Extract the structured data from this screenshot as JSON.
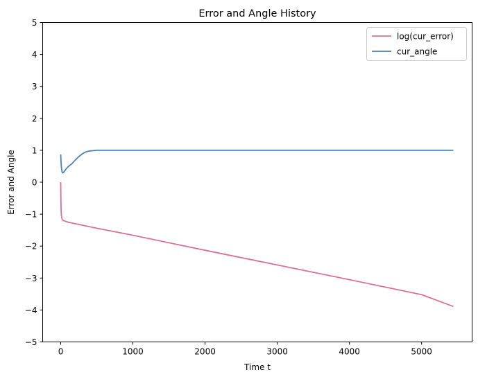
{
  "chart_data": {
    "type": "line",
    "title": "Error and Angle History",
    "xlabel": "Time t",
    "ylabel": "Error and Angle",
    "xlim": [
      -250,
      5700
    ],
    "ylim": [
      -5,
      5
    ],
    "xticks": [
      0,
      1000,
      2000,
      3000,
      4000,
      5000
    ],
    "xtick_labels": [
      "0",
      "1000",
      "2000",
      "3000",
      "4000",
      "5000"
    ],
    "yticks": [
      -5,
      -4,
      -3,
      -2,
      -1,
      0,
      1,
      2,
      3,
      4,
      5
    ],
    "ytick_labels": [
      "−5",
      "−4",
      "−3",
      "−2",
      "−1",
      "0",
      "1",
      "2",
      "3",
      "4",
      "5"
    ],
    "grid": false,
    "legend_position": "top-right",
    "series": [
      {
        "name": "log(cur_error)",
        "color": "#dc6f98",
        "x": [
          0,
          3,
          6,
          10,
          15,
          20,
          30,
          40,
          60,
          100,
          500,
          1000,
          2000,
          3000,
          4000,
          5000,
          5440
        ],
        "y": [
          0,
          -0.6,
          -0.9,
          -1.05,
          -1.12,
          -1.16,
          -1.19,
          -1.2,
          -1.22,
          -1.25,
          -1.44,
          -1.66,
          -2.13,
          -2.59,
          -3.05,
          -3.52,
          -3.89
        ]
      },
      {
        "name": "cur_angle",
        "color": "#4a81b9",
        "x": [
          0,
          5,
          10,
          20,
          30,
          40,
          60,
          80,
          100,
          150,
          200,
          250,
          300,
          350,
          400,
          450,
          500,
          600,
          800,
          1000,
          2000,
          3000,
          4000,
          5000,
          5440
        ],
        "y": [
          0.87,
          0.62,
          0.45,
          0.31,
          0.29,
          0.31,
          0.37,
          0.43,
          0.48,
          0.57,
          0.69,
          0.8,
          0.89,
          0.95,
          0.98,
          0.99,
          1.0,
          1.0,
          1.0,
          1.0,
          1.0,
          1.0,
          1.0,
          1.0,
          1.0
        ]
      }
    ]
  }
}
